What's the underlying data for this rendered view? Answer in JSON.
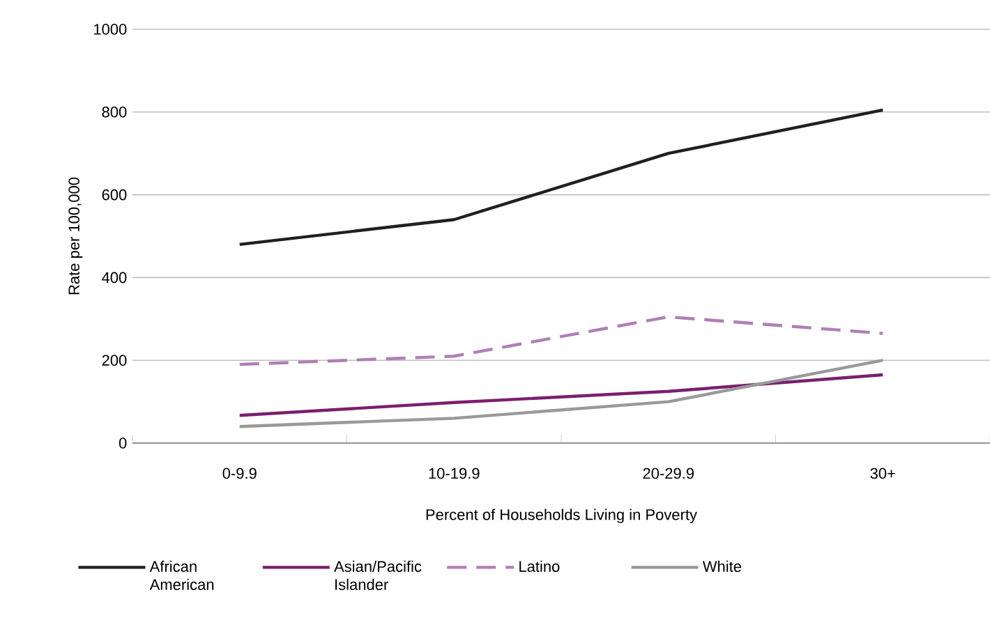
{
  "chart_data": {
    "type": "line",
    "xlabel": "Percent of Households Living in Poverty",
    "ylabel": "Rate per 100,000",
    "categories": [
      "0-9.9",
      "10-19.9",
      "20-29.9",
      "30+"
    ],
    "series": [
      {
        "name": "African American",
        "color": "#231f20",
        "values": [
          480,
          540,
          700,
          805
        ],
        "line_style": "solid"
      },
      {
        "name": "Asian/Pacific Islander",
        "color": "#7b1f6e",
        "values": [
          67,
          98,
          125,
          165
        ],
        "line_style": "solid"
      },
      {
        "name": "Latino",
        "color": "#b07fb5",
        "values": [
          190,
          210,
          305,
          265
        ],
        "line_style": "dashed"
      },
      {
        "name": "White",
        "color": "#999999",
        "values": [
          40,
          60,
          100,
          200
        ],
        "line_style": "solid"
      }
    ],
    "ylim": [
      0,
      1000
    ],
    "yticks": [
      0,
      200,
      400,
      600,
      800,
      1000
    ],
    "grid": "y",
    "legend": "bottom",
    "marker": "none"
  }
}
